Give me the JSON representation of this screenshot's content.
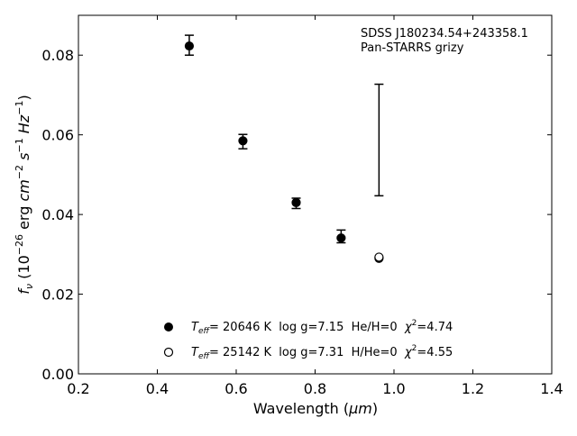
{
  "chart_data": {
    "type": "scatter",
    "xlabel": "Wavelength (",
    "xlabel_unit": "μm",
    "xlabel_end": ")",
    "ylabel": {
      "base": "f",
      "sub": "ν",
      "open": " (10",
      "exp1": "−26",
      "erg": " erg ",
      "cm": "cm",
      "exp2": "−2",
      "s": "s",
      "exp3": "−1",
      "hz": "Hz",
      "exp4": "−1",
      "close": ")"
    },
    "xlim": [
      0.2,
      1.4
    ],
    "ylim": [
      0.0,
      0.09
    ],
    "xticks": [
      0.2,
      0.4,
      0.6,
      0.8,
      1.0,
      1.2,
      1.4
    ],
    "xtick_labels": [
      "0.2",
      "0.4",
      "0.6",
      "0.8",
      "1.0",
      "1.2",
      "1.4"
    ],
    "yticks": [
      0.0,
      0.02,
      0.04,
      0.06,
      0.08
    ],
    "ytick_labels": [
      "0.00",
      "0.02",
      "0.04",
      "0.06",
      "0.08"
    ],
    "grid": false,
    "annotation": {
      "line1": "SDSS J180234.54+243358.1",
      "line2": "Pan-STARRS grizy"
    },
    "observed": {
      "x": [
        0.481,
        0.617,
        0.752,
        0.866,
        0.962
      ],
      "y": [
        0.0825,
        0.0583,
        0.0428,
        0.0345,
        0.0587
      ],
      "yerr": [
        0.0025,
        0.0018,
        0.0013,
        0.0016,
        0.014
      ]
    },
    "series": [
      {
        "marker": "filled",
        "x": [
          0.481,
          0.617,
          0.752,
          0.866,
          0.962
        ],
        "y": [
          0.0823,
          0.0585,
          0.043,
          0.0341,
          0.029
        ]
      },
      {
        "marker": "open",
        "x": [
          0.962
        ],
        "y": [
          0.0293
        ]
      }
    ],
    "legend": {
      "placement": "lower-center",
      "entries": [
        {
          "marker": "filled",
          "teff_T": "T",
          "teff_sub": "eff",
          "text": "= 20646 K  log g=7.15  He/H=0  ",
          "chi": "χ",
          "chi_sup": "2",
          "chi_val": "=4.74"
        },
        {
          "marker": "open",
          "teff_T": "T",
          "teff_sub": "eff",
          "text": "= 25142 K  log g=7.31  H/He=0  ",
          "chi": "χ",
          "chi_sup": "2",
          "chi_val": "=4.55"
        }
      ]
    }
  }
}
